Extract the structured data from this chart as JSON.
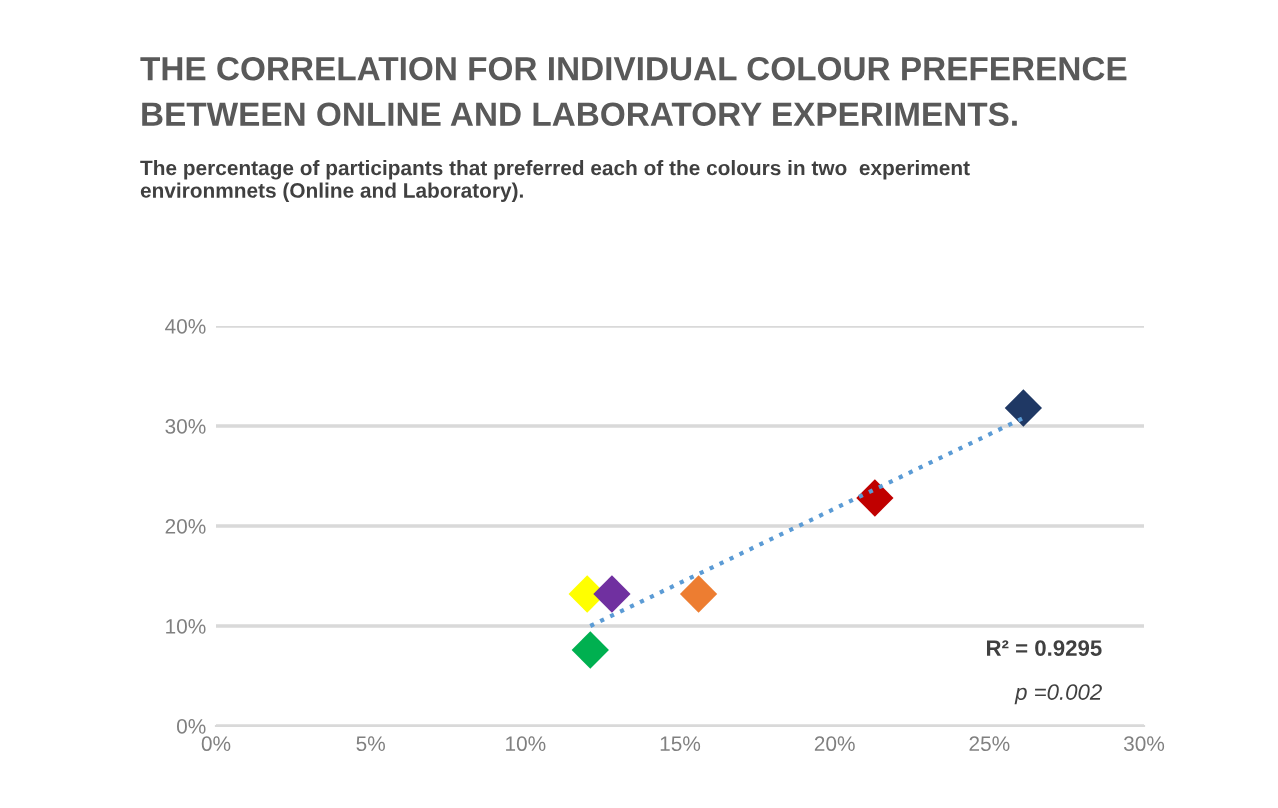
{
  "chart_data": {
    "type": "scatter",
    "title": "THE CORRELATION FOR INDIVIDUAL COLOUR PREFERENCE\nBETWEEN ONLINE AND LABORATORY EXPERIMENTS.",
    "subtitle": "The percentage of participants that preferred each of the colours in two  experiment\nenvironmnets (Online and Laboratory).",
    "series": [
      {
        "x": [
          12.0,
          12.8,
          15.6,
          12.1,
          21.3,
          26.1
        ],
        "values": [
          13.2,
          13.2,
          13.2,
          7.6,
          22.8,
          31.8
        ],
        "colors": [
          "#ffff00",
          "#7030a0",
          "#ed7d31",
          "#00b050",
          "#c00000",
          "#1f3864"
        ],
        "marker": "diamond"
      },
      {
        "type": "line",
        "x": [
          12.1,
          26.1
        ],
        "values": [
          10.0,
          30.8
        ],
        "color": "#5b9bd5",
        "line_style": "dotted",
        "marker": "none"
      }
    ],
    "xlim": [
      0,
      30
    ],
    "xticks": [
      {
        "value": 0,
        "label": "0%"
      },
      {
        "value": 5,
        "label": "5%"
      },
      {
        "value": 10,
        "label": "10%"
      },
      {
        "value": 15,
        "label": "15%"
      },
      {
        "value": 20,
        "label": "20%"
      },
      {
        "value": 25,
        "label": "25%"
      },
      {
        "value": 30,
        "label": "30%"
      }
    ],
    "ylim": [
      0,
      40
    ],
    "yticks": [
      {
        "value": 0,
        "label": "0%"
      },
      {
        "value": 10,
        "label": "10%"
      },
      {
        "value": 20,
        "label": "20%"
      },
      {
        "value": 30,
        "label": "30%"
      },
      {
        "value": 40,
        "label": "40%"
      }
    ],
    "grid": "y",
    "legend": false,
    "annotations": [
      "R² = 0.9295",
      "p =0.002"
    ]
  }
}
